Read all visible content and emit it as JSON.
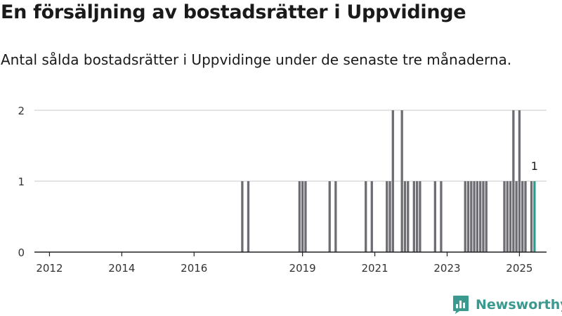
{
  "title": "En försäljning av bostadsrätter i Uppvidinge",
  "subtitle": "Antal sålda bostadsrätter i Uppvidinge under de senaste tre månaderna.",
  "brand": {
    "name": "Newsworthy",
    "icon": "newsworthy-logo-icon",
    "color": "#3a9a8f"
  },
  "colors": {
    "bar": "#6d6d73",
    "highlight": "#2a9d8f",
    "grid": "#d4d4d4",
    "axis": "#222222"
  },
  "chart_data": {
    "type": "bar",
    "title": "",
    "subtitle": "",
    "xlabel": "",
    "ylabel": "",
    "ylim": [
      0,
      2
    ],
    "xlim": [
      "2011-08",
      "2025-10"
    ],
    "grid": true,
    "y_ticks": [
      "0",
      "1",
      "2"
    ],
    "x_ticks": [
      {
        "label": "2012",
        "date": "2012-01"
      },
      {
        "label": "2014",
        "date": "2014-01"
      },
      {
        "label": "2016",
        "date": "2016-01"
      },
      {
        "label": "2019",
        "date": "2019-01"
      },
      {
        "label": "2021",
        "date": "2021-01"
      },
      {
        "label": "2023",
        "date": "2023-01"
      },
      {
        "label": "2025",
        "date": "2025-01"
      }
    ],
    "series": [
      {
        "x": [
          "2017-05",
          "2017-07",
          "2018-12",
          "2019-01",
          "2019-02",
          "2019-10",
          "2019-12",
          "2020-10",
          "2020-12",
          "2021-05",
          "2021-06",
          "2021-07",
          "2021-10",
          "2021-11",
          "2021-12",
          "2022-02",
          "2022-03",
          "2022-04",
          "2022-09",
          "2022-11",
          "2023-07",
          "2023-08",
          "2023-09",
          "2023-10",
          "2023-11",
          "2023-12",
          "2024-01",
          "2024-02",
          "2024-08",
          "2024-09",
          "2024-10",
          "2024-11",
          "2024-12",
          "2025-01",
          "2025-02",
          "2025-03",
          "2025-05",
          "2025-06"
        ],
        "values": [
          1,
          1,
          1,
          1,
          1,
          1,
          1,
          1,
          1,
          1,
          1,
          2,
          2,
          1,
          1,
          1,
          1,
          1,
          1,
          1,
          1,
          1,
          1,
          1,
          1,
          1,
          1,
          1,
          1,
          1,
          1,
          2,
          1,
          2,
          1,
          1,
          1,
          1
        ]
      }
    ],
    "highlight": {
      "x": "2025-06",
      "label": "1"
    }
  }
}
